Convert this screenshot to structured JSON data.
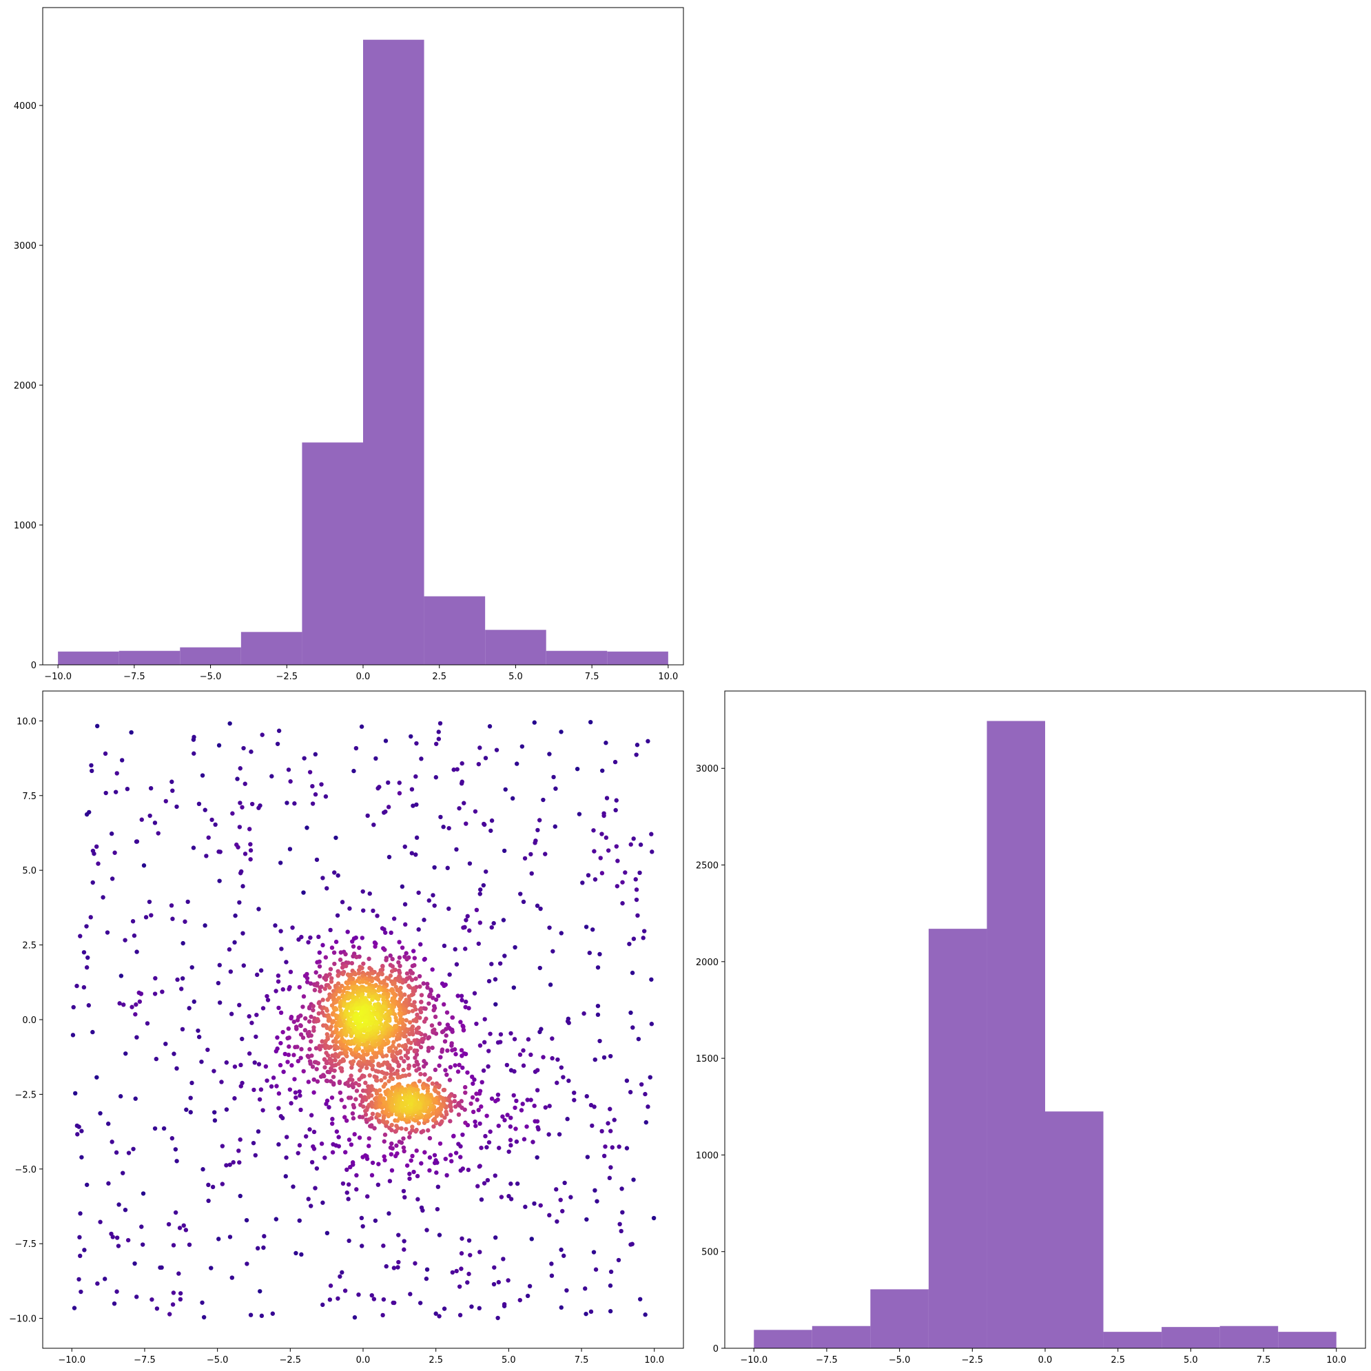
{
  "colors": {
    "bar": "#9467bd",
    "axis": "#000000",
    "background": "#ffffff",
    "colormap": "plasma"
  },
  "chart_data": [
    {
      "type": "bar",
      "panel": "top-left",
      "subtype": "histogram",
      "bin_edges": [
        -10,
        -8,
        -6,
        -4,
        -2,
        0,
        2,
        4,
        6,
        8,
        10
      ],
      "values": [
        95,
        100,
        125,
        235,
        1590,
        4470,
        490,
        250,
        100,
        95
      ],
      "xlim": [
        -10.5,
        10.5
      ],
      "ylim": [
        0,
        4700
      ],
      "xticks": [
        -10,
        -7.5,
        -5,
        -2.5,
        0,
        2.5,
        5,
        7.5,
        10
      ],
      "xtick_labels": [
        "−10.0",
        "−7.5",
        "−5.0",
        "−2.5",
        "0.0",
        "2.5",
        "5.0",
        "7.5",
        "10.0"
      ],
      "yticks": [
        0,
        1000,
        2000,
        3000,
        4000
      ],
      "ytick_labels": [
        "0",
        "1000",
        "2000",
        "3000",
        "4000"
      ],
      "title": "",
      "xlabel": "",
      "ylabel": "",
      "grid": false
    },
    {
      "type": "scatter",
      "panel": "bottom-left",
      "description_of_points": "density-colored scatter (plasma colormap); dense bright cluster near (0,0), dense dark-purple cluster near (1.8,-2.8), surrounding moderate cloud and uniform background noise over [-10,10]x[-10,10]",
      "clusters": [
        {
          "center": [
            0.1,
            0.0
          ],
          "spread": 1.0,
          "count": 1200
        },
        {
          "center": [
            1.6,
            -2.8
          ],
          "spread": [
            0.8,
            0.35
          ],
          "count": 450
        },
        {
          "center": [
            0.8,
            -1.8
          ],
          "spread": 2.5,
          "count": 450
        }
      ],
      "uniform_background": {
        "xrange": [
          -10,
          10
        ],
        "yrange": [
          -10,
          10
        ],
        "count": 750
      },
      "xlim": [
        -11,
        11
      ],
      "ylim": [
        -11,
        11
      ],
      "xticks": [
        -10,
        -7.5,
        -5,
        -2.5,
        0,
        2.5,
        5,
        7.5,
        10
      ],
      "xtick_labels": [
        "−10.0",
        "−7.5",
        "−5.0",
        "−2.5",
        "0.0",
        "2.5",
        "5.0",
        "7.5",
        "10.0"
      ],
      "yticks": [
        -10,
        -7.5,
        -5,
        -2.5,
        0,
        2.5,
        5,
        7.5,
        10
      ],
      "ytick_labels": [
        "−10.0",
        "−7.5",
        "−5.0",
        "−2.5",
        "0.0",
        "2.5",
        "5.0",
        "7.5",
        "10.0"
      ],
      "title": "",
      "xlabel": "",
      "ylabel": "",
      "grid": false
    },
    {
      "type": "bar",
      "panel": "bottom-right",
      "subtype": "histogram",
      "bin_edges": [
        -10,
        -8,
        -6,
        -4,
        -2,
        0,
        2,
        4,
        6,
        8,
        10
      ],
      "values": [
        95,
        115,
        305,
        2170,
        3245,
        1225,
        85,
        110,
        115,
        85
      ],
      "xlim": [
        -11,
        11
      ],
      "ylim": [
        0,
        3400
      ],
      "xticks": [
        -10,
        -7.5,
        -5,
        -2.5,
        0,
        2.5,
        5,
        7.5,
        10
      ],
      "xtick_labels": [
        "−10.0",
        "−7.5",
        "−5.0",
        "−2.5",
        "0.0",
        "2.5",
        "5.0",
        "7.5",
        "10.0"
      ],
      "yticks": [
        0,
        500,
        1000,
        1500,
        2000,
        2500,
        3000
      ],
      "ytick_labels": [
        "0",
        "500",
        "1000",
        "1500",
        "2000",
        "2500",
        "3000"
      ],
      "title": "",
      "xlabel": "",
      "ylabel": "",
      "grid": false
    }
  ]
}
